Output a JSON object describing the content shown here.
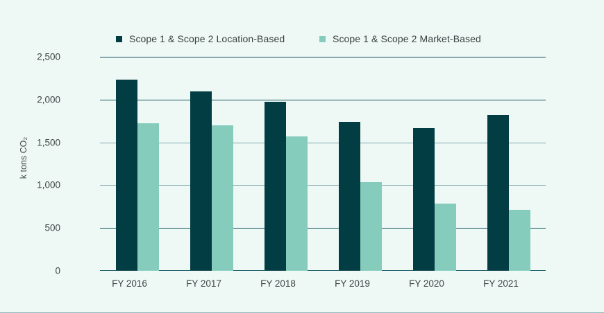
{
  "page": {
    "background": "#eef8f4"
  },
  "chart_data": {
    "type": "bar",
    "title": "",
    "categories": [
      "FY 2016",
      "FY 2017",
      "FY 2018",
      "FY 2019",
      "FY 2020",
      "FY 2021"
    ],
    "series": [
      {
        "name": "Scope 1 & Scope 2 Location-Based",
        "color": "#033d44",
        "values": [
          2230,
          2095,
          1975,
          1740,
          1665,
          1820
        ]
      },
      {
        "name": "Scope 1 & Scope 2 Market-Based",
        "color": "#85ccbd",
        "values": [
          1720,
          1700,
          1570,
          1040,
          785,
          715
        ]
      }
    ],
    "xlabel": "",
    "ylabel": "k tons CO₂",
    "ylim": [
      0,
      2500
    ],
    "ytick_interval": 500,
    "yticks": [
      0,
      500,
      1000,
      1500,
      2000,
      2500
    ],
    "ytick_labels": [
      "0",
      "500",
      "1,000",
      "1,500",
      "2,000",
      "2,500"
    ],
    "grid": "horizontal",
    "soft_gridline_values": [
      1000,
      1500
    ],
    "legend_position": "top"
  },
  "colors": {
    "grid_strong": "#0d5260",
    "grid_soft": "#7ca4ab",
    "axis_text": "#3f4648",
    "legend_text": "#383f41",
    "bottom_rule": "#8fbcc0"
  }
}
